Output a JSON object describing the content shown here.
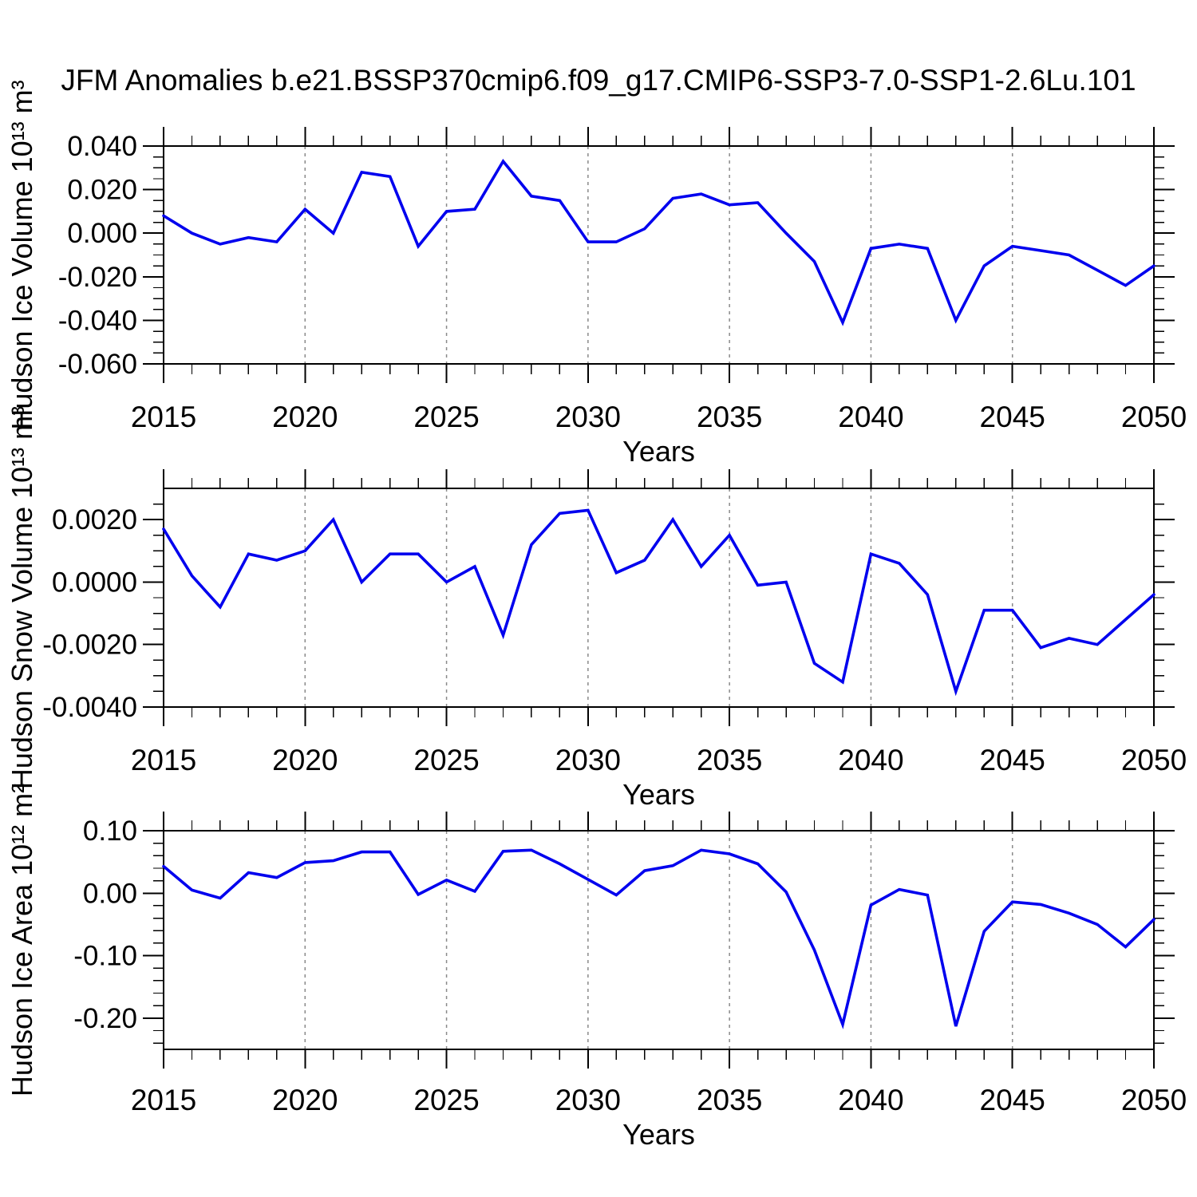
{
  "title": "JFM Anomalies b.e21.BSSP370cmip6.f09_g17.CMIP6-SSP3-7.0-SSP1-2.6Lu.101",
  "colors": {
    "line": "#0000EE",
    "axis": "#000000",
    "grid": "#8A8A8A",
    "background": "#FFFFFF",
    "text": "#000000"
  },
  "chart_data": [
    {
      "id": "ice_volume",
      "type": "line",
      "ylabel": "Hudson Ice Volume 10¹³ m³",
      "xlabel": "Years",
      "line_color": "#0000EE",
      "ylim": [
        -0.06,
        0.04
      ],
      "yticks": [
        0.04,
        0.02,
        0.0,
        -0.02,
        -0.04,
        -0.06
      ],
      "ytick_labels": [
        "0.040",
        "0.020",
        "0.000",
        "-0.020",
        "-0.040",
        "-0.060"
      ],
      "yminor": 0.005,
      "xticks": [
        2015,
        2020,
        2025,
        2030,
        2035,
        2040,
        2045,
        2050
      ],
      "xtick_labels": [
        "2015",
        "2020",
        "2025",
        "2030",
        "2035",
        "2040",
        "2045",
        "2050"
      ],
      "xminor": 1,
      "grid_x": [
        2020,
        2025,
        2030,
        2035,
        2040,
        2045
      ],
      "x": [
        2015,
        2016,
        2017,
        2018,
        2019,
        2020,
        2021,
        2022,
        2023,
        2024,
        2025,
        2026,
        2027,
        2028,
        2029,
        2030,
        2031,
        2032,
        2033,
        2034,
        2035,
        2036,
        2037,
        2038,
        2039,
        2040,
        2041,
        2042,
        2043,
        2044,
        2045,
        2046,
        2047,
        2048,
        2049,
        2050
      ],
      "values": [
        0.008,
        0.0,
        -0.005,
        -0.002,
        -0.004,
        0.011,
        0.0,
        0.028,
        0.026,
        -0.006,
        0.01,
        0.011,
        0.033,
        0.017,
        0.015,
        -0.004,
        -0.004,
        0.002,
        0.016,
        0.018,
        0.013,
        0.014,
        0.0,
        -0.013,
        -0.041,
        -0.007,
        -0.005,
        -0.007,
        -0.04,
        -0.015,
        -0.006,
        -0.008,
        -0.01,
        -0.017,
        -0.024,
        -0.015
      ]
    },
    {
      "id": "snow_volume",
      "type": "line",
      "ylabel": "Hudson Snow Volume 10¹³ m³",
      "xlabel": "Years",
      "line_color": "#0000EE",
      "ylim": [
        -0.004,
        0.003
      ],
      "yticks": [
        0.002,
        0.0,
        -0.002,
        -0.004
      ],
      "ytick_labels": [
        "0.0020",
        "0.0000",
        "-0.0020",
        "-0.0040"
      ],
      "yminor": 0.0005,
      "xticks": [
        2015,
        2020,
        2025,
        2030,
        2035,
        2040,
        2045,
        2050
      ],
      "xtick_labels": [
        "2015",
        "2020",
        "2025",
        "2030",
        "2035",
        "2040",
        "2045",
        "2050"
      ],
      "xminor": 1,
      "grid_x": [
        2020,
        2025,
        2030,
        2035,
        2040,
        2045
      ],
      "x": [
        2015,
        2016,
        2017,
        2018,
        2019,
        2020,
        2021,
        2022,
        2023,
        2024,
        2025,
        2026,
        2027,
        2028,
        2029,
        2030,
        2031,
        2032,
        2033,
        2034,
        2035,
        2036,
        2037,
        2038,
        2039,
        2040,
        2041,
        2042,
        2043,
        2044,
        2045,
        2046,
        2047,
        2048,
        2049,
        2050
      ],
      "values": [
        0.0017,
        0.0002,
        -0.0008,
        0.0009,
        0.0007,
        0.001,
        0.002,
        0.0,
        0.0009,
        0.0009,
        0.0,
        0.0005,
        -0.0017,
        0.0012,
        0.0022,
        0.0023,
        0.0003,
        0.0007,
        0.002,
        0.0005,
        0.0015,
        -0.0001,
        0.0,
        -0.0026,
        -0.0032,
        0.0009,
        0.0006,
        -0.0004,
        -0.0035,
        -0.0009,
        -0.0009,
        -0.0021,
        -0.0018,
        -0.002,
        -0.0012,
        -0.0004
      ]
    },
    {
      "id": "ice_area",
      "type": "line",
      "ylabel": "Hudson Ice Area 10¹² m²",
      "xlabel": "Years",
      "line_color": "#0000EE",
      "ylim": [
        -0.25,
        0.1
      ],
      "yticks": [
        0.1,
        0.0,
        -0.1,
        -0.2
      ],
      "ytick_labels": [
        "0.10",
        "0.00",
        "-0.10",
        "-0.20"
      ],
      "yminor": 0.02,
      "xticks": [
        2015,
        2020,
        2025,
        2030,
        2035,
        2040,
        2045,
        2050
      ],
      "xtick_labels": [
        "2015",
        "2020",
        "2025",
        "2030",
        "2035",
        "2040",
        "2045",
        "2050"
      ],
      "xminor": 1,
      "grid_x": [
        2020,
        2025,
        2030,
        2035,
        2040,
        2045
      ],
      "x": [
        2015,
        2016,
        2017,
        2018,
        2019,
        2020,
        2021,
        2022,
        2023,
        2024,
        2025,
        2026,
        2027,
        2028,
        2029,
        2030,
        2031,
        2032,
        2033,
        2034,
        2035,
        2036,
        2037,
        2038,
        2039,
        2040,
        2041,
        2042,
        2043,
        2044,
        2045,
        2046,
        2047,
        2048,
        2049,
        2050
      ],
      "values": [
        0.043,
        0.005,
        -0.008,
        0.033,
        0.025,
        0.049,
        0.052,
        0.066,
        0.066,
        -0.002,
        0.021,
        0.003,
        0.067,
        0.069,
        0.047,
        0.022,
        -0.003,
        0.036,
        0.044,
        0.069,
        0.063,
        0.047,
        0.002,
        -0.091,
        -0.21,
        -0.019,
        0.006,
        -0.003,
        -0.213,
        -0.061,
        -0.014,
        -0.018,
        -0.032,
        -0.05,
        -0.086,
        -0.042
      ]
    }
  ]
}
